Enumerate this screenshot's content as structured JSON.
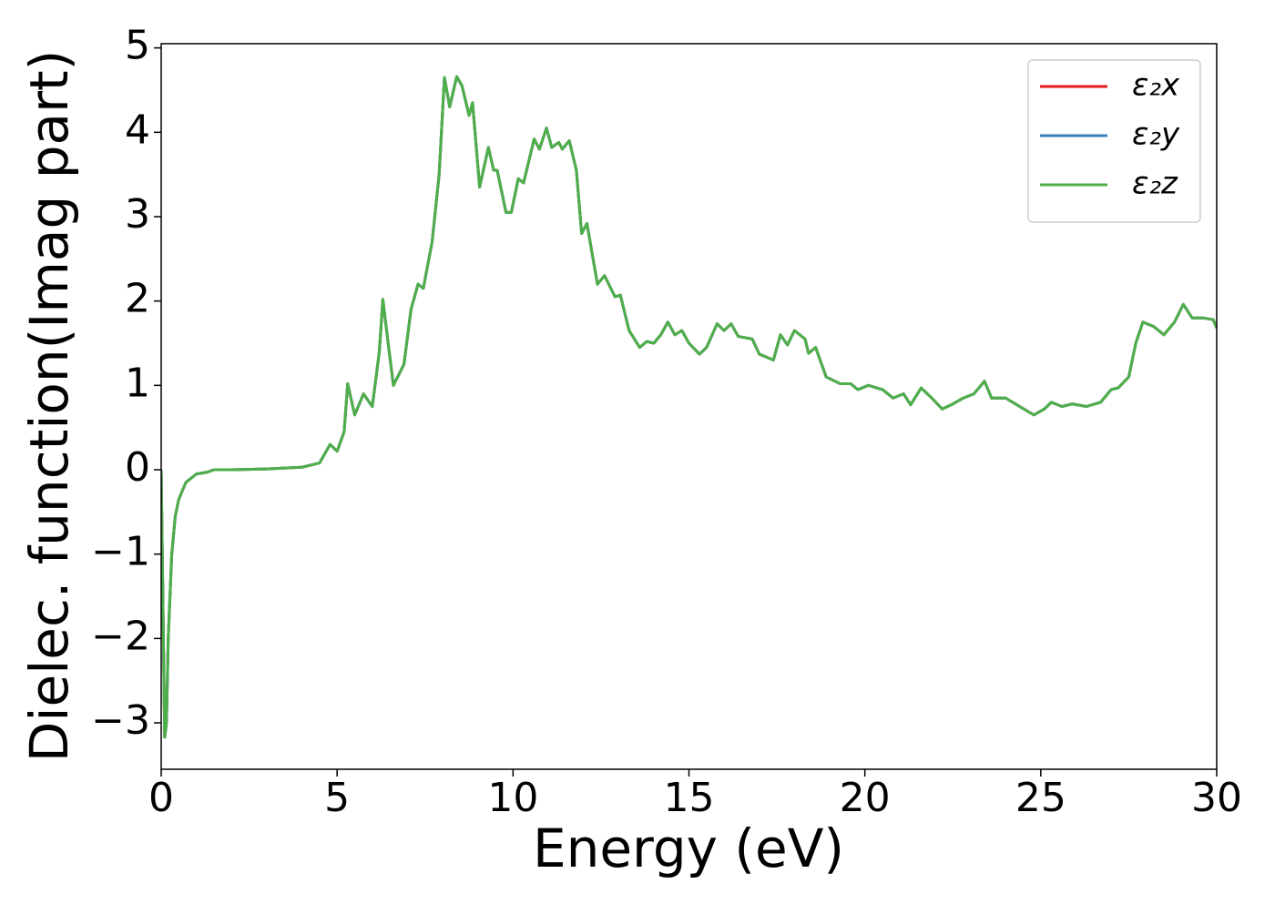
{
  "chart_data": {
    "type": "line",
    "xlabel": "Energy (eV)",
    "ylabel": "Dielec. function(Imag part)",
    "xlim": [
      0,
      30
    ],
    "ylim": [
      -3.55,
      5.05
    ],
    "xticks": [
      0,
      5,
      10,
      15,
      20,
      25,
      30
    ],
    "yticks": [
      {
        "value": -3,
        "label": "−3"
      },
      {
        "value": -2,
        "label": "−2"
      },
      {
        "value": -1,
        "label": "−1"
      },
      0,
      1,
      2,
      3,
      4,
      5
    ],
    "legend": "upper right",
    "x": [
      0.0,
      0.1,
      0.15,
      0.2,
      0.3,
      0.4,
      0.5,
      0.7,
      1.0,
      1.3,
      1.5,
      2.0,
      3.0,
      4.0,
      4.5,
      4.8,
      5.0,
      5.2,
      5.3,
      5.5,
      5.75,
      6.0,
      6.2,
      6.3,
      6.45,
      6.6,
      6.9,
      7.1,
      7.3,
      7.45,
      7.7,
      7.9,
      8.05,
      8.2,
      8.4,
      8.55,
      8.75,
      8.85,
      9.05,
      9.3,
      9.45,
      9.55,
      9.8,
      9.95,
      10.15,
      10.3,
      10.6,
      10.75,
      10.95,
      11.1,
      11.3,
      11.4,
      11.6,
      11.8,
      11.95,
      12.1,
      12.4,
      12.6,
      12.9,
      13.05,
      13.3,
      13.6,
      13.8,
      14.0,
      14.2,
      14.4,
      14.6,
      14.8,
      15.0,
      15.3,
      15.5,
      15.8,
      16.0,
      16.2,
      16.4,
      16.8,
      17.0,
      17.4,
      17.6,
      17.8,
      18.0,
      18.3,
      18.4,
      18.6,
      18.9,
      19.3,
      19.6,
      19.8,
      20.1,
      20.5,
      20.8,
      21.1,
      21.3,
      21.6,
      21.9,
      22.2,
      22.5,
      22.8,
      23.1,
      23.4,
      23.6,
      24.0,
      24.4,
      24.8,
      25.1,
      25.3,
      25.6,
      25.9,
      26.3,
      26.7,
      27.0,
      27.2,
      27.5,
      27.7,
      27.9,
      28.2,
      28.5,
      28.8,
      29.05,
      29.3,
      29.6,
      29.9,
      30.0
    ],
    "series": [
      {
        "name": "ε₂x",
        "color": "#e41a1c",
        "values": [
          0.0,
          -3.17,
          -3.0,
          -2.0,
          -1.0,
          -0.55,
          -0.35,
          -0.15,
          -0.05,
          -0.03,
          0.0,
          0.0,
          0.01,
          0.03,
          0.08,
          0.3,
          0.22,
          0.45,
          1.02,
          0.65,
          0.9,
          0.75,
          1.4,
          2.02,
          1.5,
          1.0,
          1.25,
          1.9,
          2.2,
          2.15,
          2.7,
          3.5,
          4.65,
          4.3,
          4.66,
          4.55,
          4.2,
          4.35,
          3.35,
          3.82,
          3.55,
          3.55,
          3.05,
          3.05,
          3.45,
          3.4,
          3.92,
          3.8,
          4.05,
          3.82,
          3.88,
          3.8,
          3.9,
          3.55,
          2.8,
          2.92,
          2.2,
          2.3,
          2.05,
          2.07,
          1.65,
          1.45,
          1.52,
          1.5,
          1.6,
          1.75,
          1.6,
          1.65,
          1.5,
          1.37,
          1.45,
          1.73,
          1.65,
          1.73,
          1.58,
          1.55,
          1.37,
          1.3,
          1.6,
          1.48,
          1.65,
          1.55,
          1.38,
          1.45,
          1.1,
          1.02,
          1.02,
          0.95,
          1.0,
          0.95,
          0.85,
          0.9,
          0.77,
          0.97,
          0.85,
          0.72,
          0.78,
          0.85,
          0.9,
          1.05,
          0.85,
          0.85,
          0.75,
          0.65,
          0.72,
          0.8,
          0.75,
          0.78,
          0.75,
          0.8,
          0.95,
          0.97,
          1.1,
          1.5,
          1.75,
          1.7,
          1.6,
          1.75,
          1.96,
          1.8,
          1.8,
          1.78,
          1.68
        ]
      },
      {
        "name": "ε₂y",
        "color": "#377eb8",
        "values": [
          0.0,
          -3.17,
          -3.0,
          -2.0,
          -1.0,
          -0.55,
          -0.35,
          -0.15,
          -0.05,
          -0.03,
          0.0,
          0.0,
          0.01,
          0.03,
          0.08,
          0.3,
          0.22,
          0.45,
          1.02,
          0.65,
          0.9,
          0.75,
          1.4,
          2.02,
          1.5,
          1.0,
          1.25,
          1.9,
          2.2,
          2.15,
          2.7,
          3.5,
          4.65,
          4.3,
          4.66,
          4.55,
          4.2,
          4.35,
          3.35,
          3.82,
          3.55,
          3.55,
          3.05,
          3.05,
          3.45,
          3.4,
          3.92,
          3.8,
          4.05,
          3.82,
          3.88,
          3.8,
          3.9,
          3.55,
          2.8,
          2.92,
          2.2,
          2.3,
          2.05,
          2.07,
          1.65,
          1.45,
          1.52,
          1.5,
          1.6,
          1.75,
          1.6,
          1.65,
          1.5,
          1.37,
          1.45,
          1.73,
          1.65,
          1.73,
          1.58,
          1.55,
          1.37,
          1.3,
          1.6,
          1.48,
          1.65,
          1.55,
          1.38,
          1.45,
          1.1,
          1.02,
          1.02,
          0.95,
          1.0,
          0.95,
          0.85,
          0.9,
          0.77,
          0.97,
          0.85,
          0.72,
          0.78,
          0.85,
          0.9,
          1.05,
          0.85,
          0.85,
          0.75,
          0.65,
          0.72,
          0.8,
          0.75,
          0.78,
          0.75,
          0.8,
          0.95,
          0.97,
          1.1,
          1.5,
          1.75,
          1.7,
          1.6,
          1.75,
          1.96,
          1.8,
          1.8,
          1.78,
          1.68
        ]
      },
      {
        "name": "ε₂z",
        "color": "#4daf4a",
        "values": [
          0.0,
          -3.17,
          -3.0,
          -2.0,
          -1.0,
          -0.55,
          -0.35,
          -0.15,
          -0.05,
          -0.03,
          0.0,
          0.0,
          0.01,
          0.03,
          0.08,
          0.3,
          0.22,
          0.45,
          1.02,
          0.65,
          0.9,
          0.75,
          1.4,
          2.02,
          1.5,
          1.0,
          1.25,
          1.9,
          2.2,
          2.15,
          2.7,
          3.5,
          4.65,
          4.3,
          4.66,
          4.55,
          4.2,
          4.35,
          3.35,
          3.82,
          3.55,
          3.55,
          3.05,
          3.05,
          3.45,
          3.4,
          3.92,
          3.8,
          4.05,
          3.82,
          3.88,
          3.8,
          3.9,
          3.55,
          2.8,
          2.92,
          2.2,
          2.3,
          2.05,
          2.07,
          1.65,
          1.45,
          1.52,
          1.5,
          1.6,
          1.75,
          1.6,
          1.65,
          1.5,
          1.37,
          1.45,
          1.73,
          1.65,
          1.73,
          1.58,
          1.55,
          1.37,
          1.3,
          1.6,
          1.48,
          1.65,
          1.55,
          1.38,
          1.45,
          1.1,
          1.02,
          1.02,
          0.95,
          1.0,
          0.95,
          0.85,
          0.9,
          0.77,
          0.97,
          0.85,
          0.72,
          0.78,
          0.85,
          0.9,
          1.05,
          0.85,
          0.85,
          0.75,
          0.65,
          0.72,
          0.8,
          0.75,
          0.78,
          0.75,
          0.8,
          0.95,
          0.97,
          1.1,
          1.5,
          1.75,
          1.7,
          1.6,
          1.75,
          1.96,
          1.8,
          1.8,
          1.78,
          1.68
        ]
      }
    ]
  }
}
